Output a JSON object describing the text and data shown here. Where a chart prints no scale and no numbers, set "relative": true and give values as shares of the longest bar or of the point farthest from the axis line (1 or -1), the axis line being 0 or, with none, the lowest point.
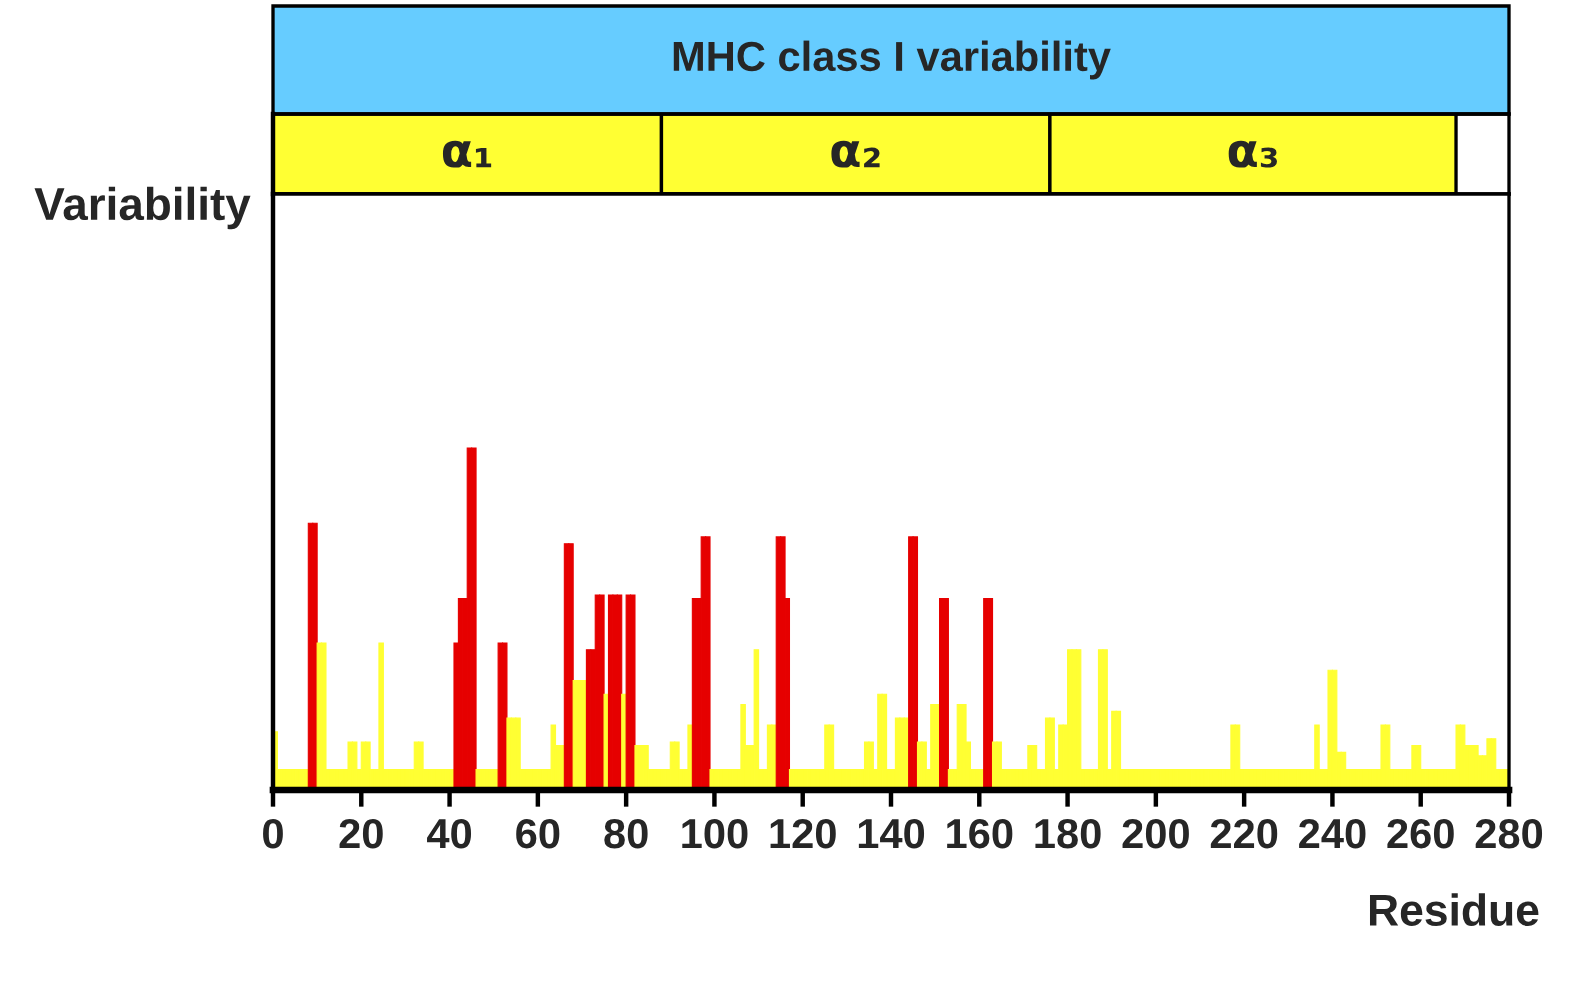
{
  "chart_data": [
    {
      "type": "bar",
      "orientation": "horizontal",
      "stacked": true,
      "title": "MHC class I variability",
      "tick_labels": false,
      "xlim": [
        0,
        280
      ],
      "categories": [
        null
      ],
      "series": [
        {
          "name": "α₁",
          "color": "#ffff33",
          "values": [
            88
          ]
        },
        {
          "name": "α₂",
          "color": "#ffff33",
          "values": [
            88
          ]
        },
        {
          "name": "α₃",
          "color": "#ffff33",
          "values": [
            92
          ]
        }
      ]
    },
    {
      "type": "bar",
      "xlabel": "Residue",
      "ylabel": "Variability",
      "relative": true,
      "tick_labels": "x",
      "xlim": [
        0,
        280
      ],
      "xticks": [
        0,
        20,
        40,
        60,
        80,
        100,
        120,
        140,
        160,
        180,
        200,
        220,
        240,
        260,
        280
      ],
      "x": [
        0.5,
        1.5,
        2.5,
        3.5,
        4.5,
        5.5,
        6.5,
        7.5,
        8.5,
        9.5,
        10.5,
        11.5,
        12.5,
        13.5,
        14.5,
        15.5,
        16.5,
        17.5,
        18.5,
        19.5,
        20.5,
        21.5,
        22.5,
        23.5,
        24.5,
        25.5,
        26.5,
        27.5,
        28.5,
        29.5,
        30.5,
        31.5,
        32.5,
        33.5,
        34.5,
        35.5,
        36.5,
        37.5,
        38.5,
        39.5,
        40.5,
        41.5,
        42.5,
        43.5,
        44.5,
        45.5,
        46.5,
        47.5,
        48.5,
        49.5,
        50.5,
        51.5,
        52.5,
        53.5,
        54.5,
        55.5,
        56.5,
        57.5,
        58.5,
        59.5,
        60.5,
        61.5,
        62.5,
        63.5,
        64.5,
        65.5,
        66.5,
        67.5,
        68.5,
        69.5,
        70.5,
        71.5,
        72.5,
        73.5,
        74.5,
        75.5,
        76.5,
        77.5,
        78.5,
        79.5,
        80.5,
        81.5,
        82.5,
        83.5,
        84.5,
        85.5,
        86.5,
        87.5,
        88.5,
        89.5,
        90.5,
        91.5,
        92.5,
        93.5,
        94.5,
        95.5,
        96.5,
        97.5,
        98.5,
        99.5,
        100.5,
        101.5,
        102.5,
        103.5,
        104.5,
        105.5,
        106.5,
        107.5,
        108.5,
        109.5,
        110.5,
        111.5,
        112.5,
        113.5,
        114.5,
        115.5,
        116.5,
        117.5,
        118.5,
        119.5,
        120.5,
        121.5,
        122.5,
        123.5,
        124.5,
        125.5,
        126.5,
        127.5,
        128.5,
        129.5,
        130.5,
        131.5,
        132.5,
        133.5,
        134.5,
        135.5,
        136.5,
        137.5,
        138.5,
        139.5,
        140.5,
        141.5,
        142.5,
        143.5,
        144.5,
        145.5,
        146.5,
        147.5,
        148.5,
        149.5,
        150.5,
        151.5,
        152.5,
        153.5,
        154.5,
        155.5,
        156.5,
        157.5,
        158.5,
        159.5,
        160.5,
        161.5,
        162.5,
        163.5,
        164.5,
        165.5,
        166.5,
        167.5,
        168.5,
        169.5,
        170.5,
        171.5,
        172.5,
        173.5,
        174.5,
        175.5,
        176.5,
        177.5,
        178.5,
        179.5,
        180.5,
        181.5,
        182.5,
        183.5,
        184.5,
        185.5,
        186.5,
        187.5,
        188.5,
        189.5,
        190.5,
        191.5,
        192.5,
        193.5,
        194.5,
        195.5,
        196.5,
        197.5,
        198.5,
        199.5,
        200.5,
        201.5,
        202.5,
        203.5,
        204.5,
        205.5,
        206.5,
        207.5,
        208.5,
        209.5,
        210.5,
        211.5,
        212.5,
        213.5,
        214.5,
        215.5,
        216.5,
        217.5,
        218.5,
        219.5,
        220.5,
        221.5,
        222.5,
        223.5,
        224.5,
        225.5,
        226.5,
        227.5,
        228.5,
        229.5,
        230.5,
        231.5,
        232.5,
        233.5,
        234.5,
        235.5,
        236.5,
        237.5,
        238.5,
        239.5,
        240.5,
        241.5,
        242.5,
        243.5,
        244.5,
        245.5,
        246.5,
        247.5,
        248.5,
        249.5,
        250.5,
        251.5,
        252.5,
        253.5,
        254.5,
        255.5,
        256.5,
        257.5,
        258.5,
        259.5,
        260.5,
        261.5,
        262.5,
        263.5,
        264.5,
        265.5,
        266.5,
        267.5,
        268.5,
        269.5,
        270.5,
        271.5,
        272.5,
        273.5,
        274.5,
        275.5,
        276.5,
        277.5,
        278.5,
        279.5
      ],
      "values": [
        0.17,
        0.06,
        0.06,
        0.06,
        0.06,
        0.06,
        0.06,
        0.06,
        0.78,
        0.78,
        0.43,
        0.43,
        0.06,
        0.06,
        0.06,
        0.06,
        0.06,
        0.14,
        0.14,
        0.06,
        0.14,
        0.14,
        0.06,
        0.06,
        0.43,
        0.06,
        0.06,
        0.06,
        0.06,
        0.06,
        0.06,
        0.06,
        0.14,
        0.14,
        0.06,
        0.06,
        0.06,
        0.06,
        0.06,
        0.06,
        0.06,
        0.43,
        0.56,
        0.56,
        1,
        1,
        0.06,
        0.06,
        0.06,
        0.06,
        0.06,
        0.43,
        0.43,
        0.21,
        0.21,
        0.21,
        0.06,
        0.06,
        0.06,
        0.06,
        0.06,
        0.06,
        0.06,
        0.19,
        0.13,
        0.13,
        0.72,
        0.72,
        0.32,
        0.32,
        0.32,
        0.41,
        0.41,
        0.57,
        0.57,
        0.28,
        0.57,
        0.57,
        0.57,
        0.28,
        0.57,
        0.57,
        0.13,
        0.13,
        0.13,
        0.06,
        0.06,
        0.06,
        0.06,
        0.06,
        0.14,
        0.14,
        0.06,
        0.06,
        0.19,
        0.56,
        0.56,
        0.74,
        0.74,
        0.06,
        0.06,
        0.06,
        0.06,
        0.06,
        0.06,
        0.06,
        0.25,
        0.13,
        0.13,
        0.41,
        0.06,
        0.06,
        0.19,
        0.19,
        0.74,
        0.74,
        0.56,
        0.06,
        0.06,
        0.06,
        0.06,
        0.06,
        0.06,
        0.06,
        0.06,
        0.19,
        0.19,
        0.06,
        0.06,
        0.06,
        0.06,
        0.06,
        0.06,
        0.06,
        0.14,
        0.14,
        0.06,
        0.28,
        0.28,
        0.06,
        0.06,
        0.21,
        0.21,
        0.21,
        0.74,
        0.74,
        0.14,
        0.14,
        0.06,
        0.25,
        0.25,
        0.56,
        0.56,
        0.06,
        0.06,
        0.25,
        0.25,
        0.14,
        0.06,
        0.06,
        0.06,
        0.56,
        0.56,
        0.14,
        0.14,
        0.06,
        0.06,
        0.06,
        0.06,
        0.06,
        0.06,
        0.13,
        0.13,
        0.06,
        0.06,
        0.21,
        0.21,
        0.06,
        0.19,
        0.19,
        0.41,
        0.41,
        0.41,
        0.06,
        0.06,
        0.06,
        0.06,
        0.41,
        0.41,
        0.06,
        0.23,
        0.23,
        0.06,
        0.06,
        0.06,
        0.06,
        0.06,
        0.06,
        0.06,
        0.06,
        0.06,
        0.06,
        0.06,
        0.06,
        0.06,
        0.06,
        0.06,
        0.06,
        0.06,
        0.06,
        0.06,
        0.06,
        0.06,
        0.06,
        0.06,
        0.06,
        0.06,
        0.19,
        0.19,
        0.06,
        0.06,
        0.06,
        0.06,
        0.06,
        0.06,
        0.06,
        0.06,
        0.06,
        0.06,
        0.06,
        0.06,
        0.06,
        0.06,
        0.06,
        0.06,
        0.06,
        0.19,
        0.06,
        0.06,
        0.35,
        0.35,
        0.11,
        0.11,
        0.06,
        0.06,
        0.06,
        0.06,
        0.06,
        0.06,
        0.06,
        0.06,
        0.19,
        0.19,
        0.06,
        0.06,
        0.06,
        0.06,
        0.06,
        0.13,
        0.13,
        0.06,
        0.06,
        0.06,
        0.06,
        0.06,
        0.06,
        0.06,
        0.06,
        0.19,
        0.19,
        0.13,
        0.13,
        0.13,
        0.1,
        0.1,
        0.15,
        0.15,
        0.06,
        0.06,
        0.06
      ],
      "colors": [
        "#ffff33",
        "#ffff33",
        "#ffff33",
        "#ffff33",
        "#ffff33",
        "#ffff33",
        "#ffff33",
        "#ffff33",
        "#e60000",
        "#e60000",
        "#ffff33",
        "#ffff33",
        "#ffff33",
        "#ffff33",
        "#ffff33",
        "#ffff33",
        "#ffff33",
        "#ffff33",
        "#ffff33",
        "#ffff33",
        "#ffff33",
        "#ffff33",
        "#ffff33",
        "#ffff33",
        "#ffff33",
        "#ffff33",
        "#ffff33",
        "#ffff33",
        "#ffff33",
        "#ffff33",
        "#ffff33",
        "#ffff33",
        "#ffff33",
        "#ffff33",
        "#ffff33",
        "#ffff33",
        "#ffff33",
        "#ffff33",
        "#ffff33",
        "#ffff33",
        "#ffff33",
        "#e60000",
        "#e60000",
        "#e60000",
        "#e60000",
        "#e60000",
        "#ffff33",
        "#ffff33",
        "#ffff33",
        "#ffff33",
        "#ffff33",
        "#e60000",
        "#e60000",
        "#ffff33",
        "#ffff33",
        "#ffff33",
        "#ffff33",
        "#ffff33",
        "#ffff33",
        "#ffff33",
        "#ffff33",
        "#ffff33",
        "#ffff33",
        "#ffff33",
        "#ffff33",
        "#ffff33",
        "#e60000",
        "#e60000",
        "#ffff33",
        "#ffff33",
        "#ffff33",
        "#e60000",
        "#e60000",
        "#e60000",
        "#e60000",
        "#ffff33",
        "#e60000",
        "#e60000",
        "#e60000",
        "#ffff33",
        "#e60000",
        "#e60000",
        "#ffff33",
        "#ffff33",
        "#ffff33",
        "#ffff33",
        "#ffff33",
        "#ffff33",
        "#ffff33",
        "#ffff33",
        "#ffff33",
        "#ffff33",
        "#ffff33",
        "#ffff33",
        "#ffff33",
        "#e60000",
        "#e60000",
        "#e60000",
        "#e60000",
        "#ffff33",
        "#ffff33",
        "#ffff33",
        "#ffff33",
        "#ffff33",
        "#ffff33",
        "#ffff33",
        "#ffff33",
        "#ffff33",
        "#ffff33",
        "#ffff33",
        "#ffff33",
        "#ffff33",
        "#ffff33",
        "#ffff33",
        "#e60000",
        "#e60000",
        "#e60000",
        "#ffff33",
        "#ffff33",
        "#ffff33",
        "#ffff33",
        "#ffff33",
        "#ffff33",
        "#ffff33",
        "#ffff33",
        "#ffff33",
        "#ffff33",
        "#ffff33",
        "#ffff33",
        "#ffff33",
        "#ffff33",
        "#ffff33",
        "#ffff33",
        "#ffff33",
        "#ffff33",
        "#ffff33",
        "#ffff33",
        "#ffff33",
        "#ffff33",
        "#ffff33",
        "#ffff33",
        "#ffff33",
        "#ffff33",
        "#ffff33",
        "#e60000",
        "#e60000",
        "#ffff33",
        "#ffff33",
        "#ffff33",
        "#ffff33",
        "#ffff33",
        "#e60000",
        "#e60000",
        "#ffff33",
        "#ffff33",
        "#ffff33",
        "#ffff33",
        "#ffff33",
        "#ffff33",
        "#ffff33",
        "#ffff33",
        "#e60000",
        "#e60000",
        "#ffff33",
        "#ffff33",
        "#ffff33",
        "#ffff33",
        "#ffff33",
        "#ffff33",
        "#ffff33",
        "#ffff33",
        "#ffff33",
        "#ffff33",
        "#ffff33",
        "#ffff33",
        "#ffff33",
        "#ffff33",
        "#ffff33",
        "#ffff33",
        "#ffff33",
        "#ffff33",
        "#ffff33",
        "#ffff33",
        "#ffff33",
        "#ffff33",
        "#ffff33",
        "#ffff33",
        "#ffff33",
        "#ffff33",
        "#ffff33",
        "#ffff33",
        "#ffff33",
        "#ffff33",
        "#ffff33",
        "#ffff33",
        "#ffff33",
        "#ffff33",
        "#ffff33",
        "#ffff33",
        "#ffff33",
        "#ffff33",
        "#ffff33",
        "#ffff33",
        "#ffff33",
        "#ffff33",
        "#ffff33",
        "#ffff33",
        "#ffff33",
        "#ffff33",
        "#ffff33",
        "#ffff33",
        "#ffff33",
        "#ffff33",
        "#ffff33",
        "#ffff33",
        "#ffff33",
        "#ffff33",
        "#ffff33",
        "#ffff33",
        "#ffff33",
        "#ffff33",
        "#ffff33",
        "#ffff33",
        "#ffff33",
        "#ffff33",
        "#ffff33",
        "#ffff33",
        "#ffff33",
        "#ffff33",
        "#ffff33",
        "#ffff33",
        "#ffff33",
        "#ffff33",
        "#ffff33",
        "#ffff33",
        "#ffff33",
        "#ffff33",
        "#ffff33",
        "#ffff33",
        "#ffff33",
        "#ffff33",
        "#ffff33",
        "#ffff33",
        "#ffff33",
        "#ffff33",
        "#ffff33",
        "#ffff33",
        "#ffff33",
        "#ffff33",
        "#ffff33",
        "#ffff33",
        "#ffff33",
        "#ffff33",
        "#ffff33",
        "#ffff33",
        "#ffff33",
        "#ffff33",
        "#ffff33",
        "#ffff33",
        "#ffff33",
        "#ffff33",
        "#ffff33",
        "#ffff33",
        "#ffff33",
        "#ffff33",
        "#ffff33",
        "#ffff33",
        "#ffff33",
        "#ffff33",
        "#ffff33",
        "#ffff33",
        "#ffff33",
        "#ffff33",
        "#ffff33",
        "#ffff33",
        "#ffff33",
        "#ffff33",
        "#ffff33",
        "#ffff33",
        "#ffff33"
      ]
    }
  ]
}
